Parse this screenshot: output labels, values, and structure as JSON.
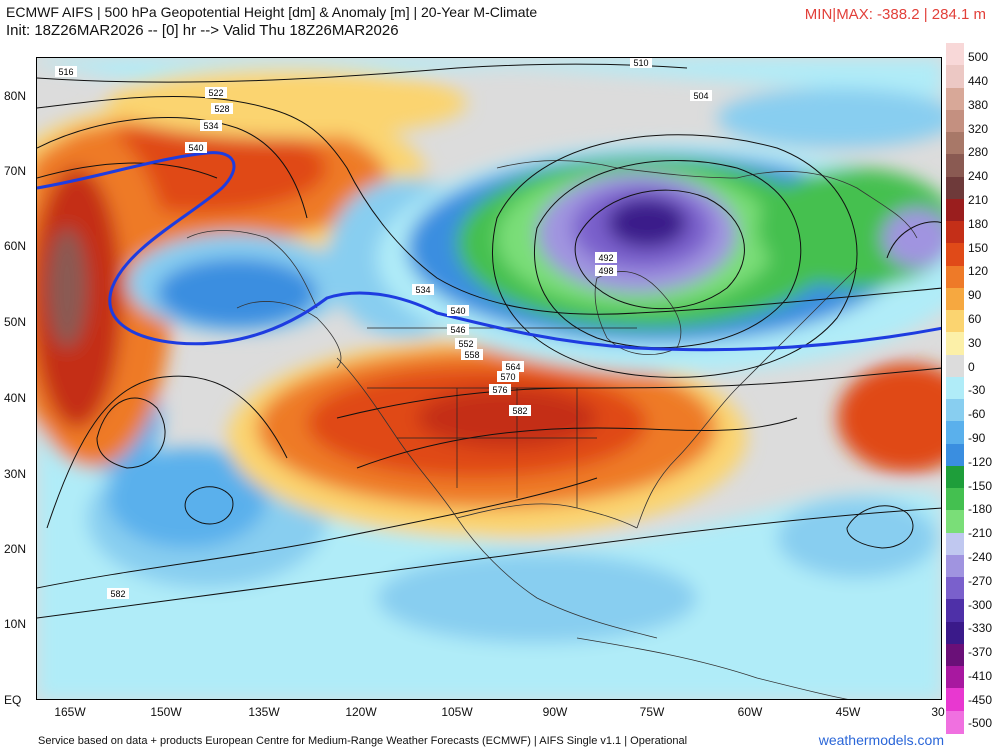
{
  "header": {
    "title_line1": "ECMWF AIFS | 500 hPa Geopotential Height [dm] & Anomaly [m] | 20-Year M-Climate",
    "title_line2": "Init: 18Z26MAR2026 -- [0] hr --> Valid Thu 18Z26MAR2026",
    "minmax": "MIN|MAX: -388.2 | 284.1 m"
  },
  "axes": {
    "lat_labels": [
      "80N",
      "70N",
      "60N",
      "50N",
      "40N",
      "30N",
      "20N",
      "10N",
      "EQ"
    ],
    "lon_labels": [
      "165W",
      "150W",
      "135W",
      "120W",
      "105W",
      "90W",
      "75W",
      "60W",
      "45W",
      "30"
    ]
  },
  "colorbar": {
    "labels": [
      "500",
      "440",
      "380",
      "320",
      "280",
      "240",
      "210",
      "180",
      "150",
      "120",
      "90",
      "60",
      "30",
      "0",
      "-30",
      "-60",
      "-90",
      "-120",
      "-150",
      "-180",
      "-210",
      "-240",
      "-270",
      "-300",
      "-330",
      "-370",
      "-410",
      "-450",
      "-500"
    ],
    "colors": [
      "#f8d8d8",
      "#ecc8c4",
      "#d8a898",
      "#c49080",
      "#a87868",
      "#8a5a52",
      "#6e3a3a",
      "#9a1e1e",
      "#c42f18",
      "#e04a18",
      "#ee7a28",
      "#f6a840",
      "#fbd470",
      "#fcf0a8",
      "#dcdcdc",
      "#b0ecf8",
      "#88cef0",
      "#5ab0ec",
      "#3a8ee0",
      "#1e9e3a",
      "#44c050",
      "#7ade78",
      "#c0c8f0",
      "#a094e0",
      "#7a60cc",
      "#4e30a8",
      "#3a1a8a",
      "#6a1078",
      "#a818a0",
      "#e838d0",
      "#f070e0"
    ]
  },
  "contour_labels": [
    "516",
    "510",
    "522",
    "528",
    "534",
    "540",
    "504",
    "492",
    "498",
    "534",
    "540",
    "546",
    "552",
    "558",
    "564",
    "570",
    "576",
    "582",
    "582"
  ],
  "footer": {
    "credit": "Service based on data + products European Centre for Medium-Range Weather Forecasts (ECMWF) | AIFS Single v1.1 | Operational",
    "brand": "weathermodels.com"
  },
  "colors": {
    "highlight_contour": "#1e3ce0",
    "minmax_text": "#e2403a",
    "brand_text": "#2a66d8"
  }
}
